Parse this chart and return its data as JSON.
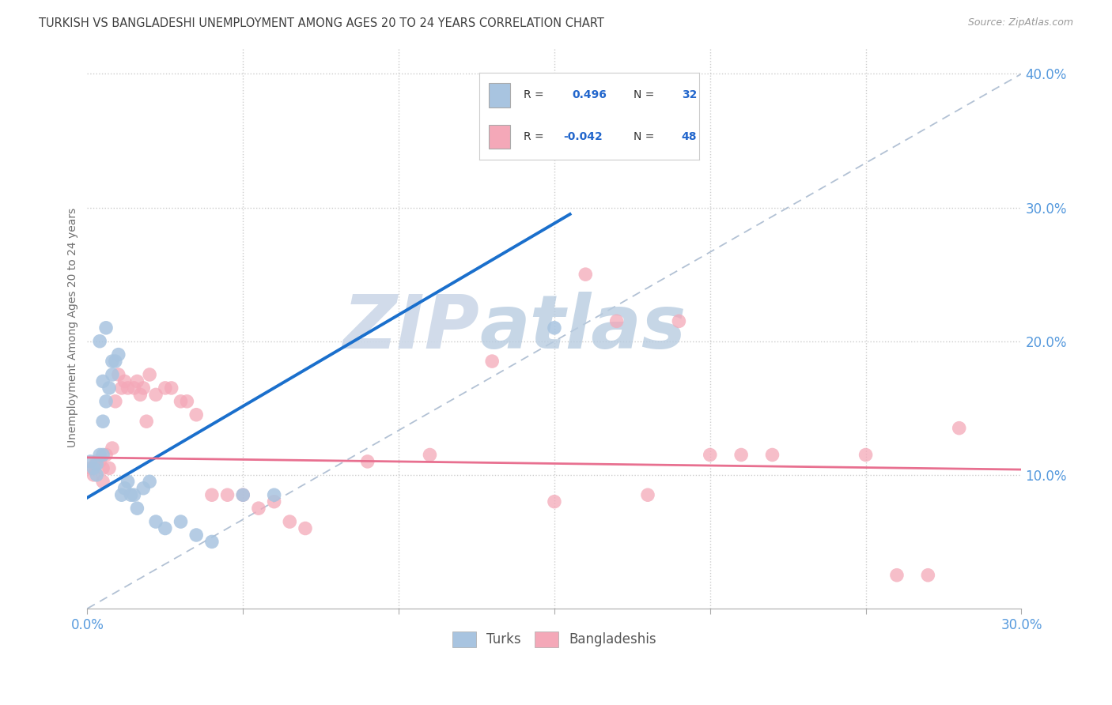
{
  "title": "TURKISH VS BANGLADESHI UNEMPLOYMENT AMONG AGES 20 TO 24 YEARS CORRELATION CHART",
  "source": "Source: ZipAtlas.com",
  "ylabel": "Unemployment Among Ages 20 to 24 years",
  "xlim": [
    0.0,
    0.3
  ],
  "ylim": [
    0.0,
    0.42
  ],
  "turks_color": "#a8c4e0",
  "bangla_color": "#f4a8b8",
  "turks_line_color": "#1a6fcc",
  "bangla_line_color": "#e87090",
  "ref_line_color": "#aabbd0",
  "watermark_zip_color": "#d0dce8",
  "watermark_atlas_color": "#c0d0e4",
  "title_color": "#404040",
  "axis_label_color": "#707070",
  "right_tick_color": "#5599dd",
  "bottom_tick_color": "#5599dd",
  "legend_text_color": "#333333",
  "legend_value_color": "#2266cc",
  "turks_x": [
    0.001,
    0.002,
    0.003,
    0.003,
    0.004,
    0.004,
    0.005,
    0.005,
    0.005,
    0.006,
    0.006,
    0.007,
    0.008,
    0.008,
    0.009,
    0.01,
    0.011,
    0.012,
    0.013,
    0.014,
    0.015,
    0.016,
    0.018,
    0.02,
    0.022,
    0.025,
    0.03,
    0.035,
    0.04,
    0.05,
    0.06,
    0.15
  ],
  "turks_y": [
    0.11,
    0.105,
    0.108,
    0.1,
    0.115,
    0.2,
    0.14,
    0.115,
    0.17,
    0.21,
    0.155,
    0.165,
    0.185,
    0.175,
    0.185,
    0.19,
    0.085,
    0.09,
    0.095,
    0.085,
    0.085,
    0.075,
    0.09,
    0.095,
    0.065,
    0.06,
    0.065,
    0.055,
    0.05,
    0.085,
    0.085,
    0.21
  ],
  "bangla_x": [
    0.001,
    0.002,
    0.003,
    0.004,
    0.005,
    0.005,
    0.006,
    0.007,
    0.008,
    0.009,
    0.01,
    0.011,
    0.012,
    0.013,
    0.015,
    0.016,
    0.017,
    0.018,
    0.019,
    0.02,
    0.022,
    0.025,
    0.027,
    0.03,
    0.032,
    0.035,
    0.04,
    0.045,
    0.05,
    0.055,
    0.06,
    0.065,
    0.07,
    0.09,
    0.11,
    0.13,
    0.15,
    0.16,
    0.17,
    0.18,
    0.19,
    0.2,
    0.21,
    0.22,
    0.25,
    0.26,
    0.27,
    0.28
  ],
  "bangla_y": [
    0.105,
    0.1,
    0.11,
    0.11,
    0.105,
    0.095,
    0.115,
    0.105,
    0.12,
    0.155,
    0.175,
    0.165,
    0.17,
    0.165,
    0.165,
    0.17,
    0.16,
    0.165,
    0.14,
    0.175,
    0.16,
    0.165,
    0.165,
    0.155,
    0.155,
    0.145,
    0.085,
    0.085,
    0.085,
    0.075,
    0.08,
    0.065,
    0.06,
    0.11,
    0.115,
    0.185,
    0.08,
    0.25,
    0.215,
    0.085,
    0.215,
    0.115,
    0.115,
    0.115,
    0.115,
    0.025,
    0.025,
    0.135
  ],
  "turks_trend_x": [
    0.0,
    0.155
  ],
  "turks_trend_y": [
    0.083,
    0.295
  ],
  "bangla_trend_x": [
    0.0,
    0.3
  ],
  "bangla_trend_y": [
    0.113,
    0.104
  ]
}
